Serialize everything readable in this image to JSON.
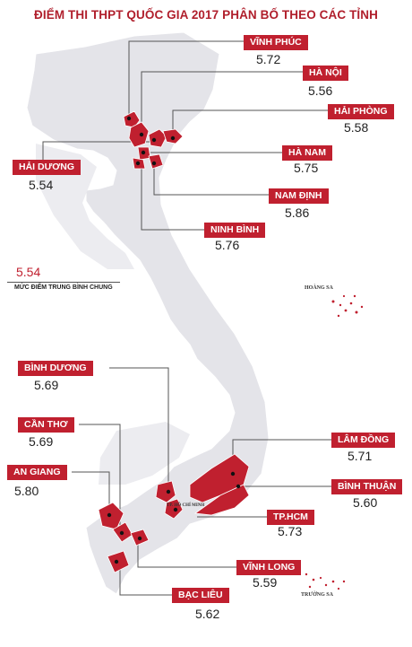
{
  "title": "ĐIỂM THI THPT QUỐC GIA 2017 PHÂN BỐ THEO CÁC TỈNH",
  "average": {
    "value": "5.54",
    "label": "MỨC ĐIỂM TRUNG BÌNH CHUNG"
  },
  "islands": {
    "hoang_sa": "HOÀNG SA",
    "truong_sa": "TRƯỜNG SA",
    "hcm_small": "TP. HỒ CHÍ MINH"
  },
  "colors": {
    "accent": "#c0202f",
    "land": "#e4e4e9",
    "line": "#555555"
  },
  "provinces": [
    {
      "id": "vinh-phuc",
      "name": "VĨNH PHÚC",
      "score": "5.72"
    },
    {
      "id": "ha-noi",
      "name": "HÀ NỘI",
      "score": "5.56"
    },
    {
      "id": "hai-phong",
      "name": "HẢI PHÒNG",
      "score": "5.58"
    },
    {
      "id": "ha-nam",
      "name": "HÀ NAM",
      "score": "5.75"
    },
    {
      "id": "hai-duong",
      "name": "HẢI DƯƠNG",
      "score": "5.54"
    },
    {
      "id": "nam-dinh",
      "name": "NAM ĐỊNH",
      "score": "5.86"
    },
    {
      "id": "ninh-binh",
      "name": "NINH BÌNH",
      "score": "5.76"
    },
    {
      "id": "binh-duong",
      "name": "BÌNH DƯƠNG",
      "score": "5.69"
    },
    {
      "id": "can-tho",
      "name": "CẦN THƠ",
      "score": "5.69"
    },
    {
      "id": "lam-dong",
      "name": "LÂM ĐỒNG",
      "score": "5.71"
    },
    {
      "id": "an-giang",
      "name": "AN GIANG",
      "score": "5.80"
    },
    {
      "id": "binh-thuan",
      "name": "BÌNH THUẬN",
      "score": "5.60"
    },
    {
      "id": "tp-hcm",
      "name": "TP.HCM",
      "score": "5.73"
    },
    {
      "id": "vinh-long",
      "name": "VĨNH LONG",
      "score": "5.59"
    },
    {
      "id": "bac-lieu",
      "name": "BẠC LIÊU",
      "score": "5.62"
    }
  ]
}
